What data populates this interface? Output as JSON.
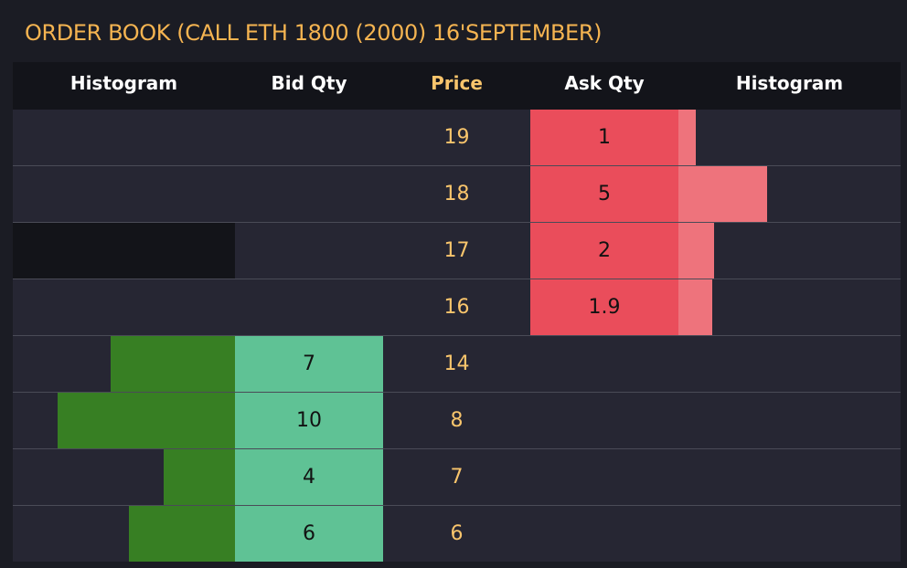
{
  "title": "ORDER BOOK (CALL ETH 1800 (2000) 16'SEPTEMBER)",
  "columns": {
    "bid_histogram": "Histogram",
    "bid_qty": "Bid Qty",
    "price": "Price",
    "ask_qty": "Ask Qty",
    "ask_histogram": "Histogram"
  },
  "colors": {
    "title": "#f5b451",
    "price": "#f9c56c",
    "ask_qty_bg": "#ea4d5b",
    "ask_histogram": "#ee737c",
    "bid_qty_bg": "#5fc295",
    "bid_histogram": "#377f23",
    "row_bg": "#262633",
    "header_bg": "#13141a"
  },
  "asks": [
    {
      "price": "19",
      "qty": "1",
      "hist_fraction": 0.2
    },
    {
      "price": "18",
      "qty": "5",
      "hist_fraction": 1.0
    },
    {
      "price": "17",
      "qty": "2",
      "hist_fraction": 0.4
    },
    {
      "price": "16",
      "qty": "1.9",
      "hist_fraction": 0.38
    }
  ],
  "bids": [
    {
      "price": "14",
      "qty": "7",
      "hist_fraction": 0.7
    },
    {
      "price": "8",
      "qty": "10",
      "hist_fraction": 1.0
    },
    {
      "price": "7",
      "qty": "4",
      "hist_fraction": 0.4
    },
    {
      "price": "6",
      "qty": "6",
      "hist_fraction": 0.6
    }
  ]
}
